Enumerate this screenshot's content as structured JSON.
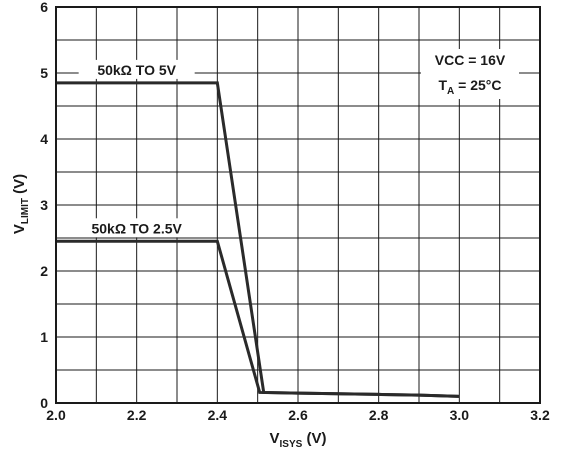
{
  "chart_data": {
    "type": "line",
    "xlabel": {
      "main": "V",
      "sub": "ISYS",
      "unit": " (V)"
    },
    "ylabel": {
      "main": "V",
      "sub": "LIMIT",
      "unit": " (V)"
    },
    "xlim": [
      2.0,
      3.2
    ],
    "ylim": [
      0,
      6
    ],
    "x_ticks": [
      "2.0",
      "2.2",
      "2.4",
      "2.6",
      "2.8",
      "3.0",
      "3.2"
    ],
    "y_ticks": [
      "0",
      "1",
      "2",
      "3",
      "4",
      "5",
      "6"
    ],
    "grid": true,
    "series": [
      {
        "name": "50kΩ TO 5V",
        "x": [
          2.0,
          2.4,
          2.515,
          2.6,
          2.8,
          2.9,
          3.0
        ],
        "y": [
          4.85,
          4.85,
          0.16,
          0.15,
          0.13,
          0.12,
          0.1
        ]
      },
      {
        "name": "50kΩ TO 2.5V",
        "x": [
          2.0,
          2.4,
          2.505,
          2.6,
          2.8,
          2.9,
          3.0
        ],
        "y": [
          2.45,
          2.45,
          0.16,
          0.15,
          0.13,
          0.12,
          0.1
        ]
      }
    ],
    "conditions": {
      "line1": "VCC = 16V",
      "line2_main": "T",
      "line2_sub": "A",
      "line2_rest": " = 25°C"
    },
    "line_color": "#2a2a2a"
  }
}
